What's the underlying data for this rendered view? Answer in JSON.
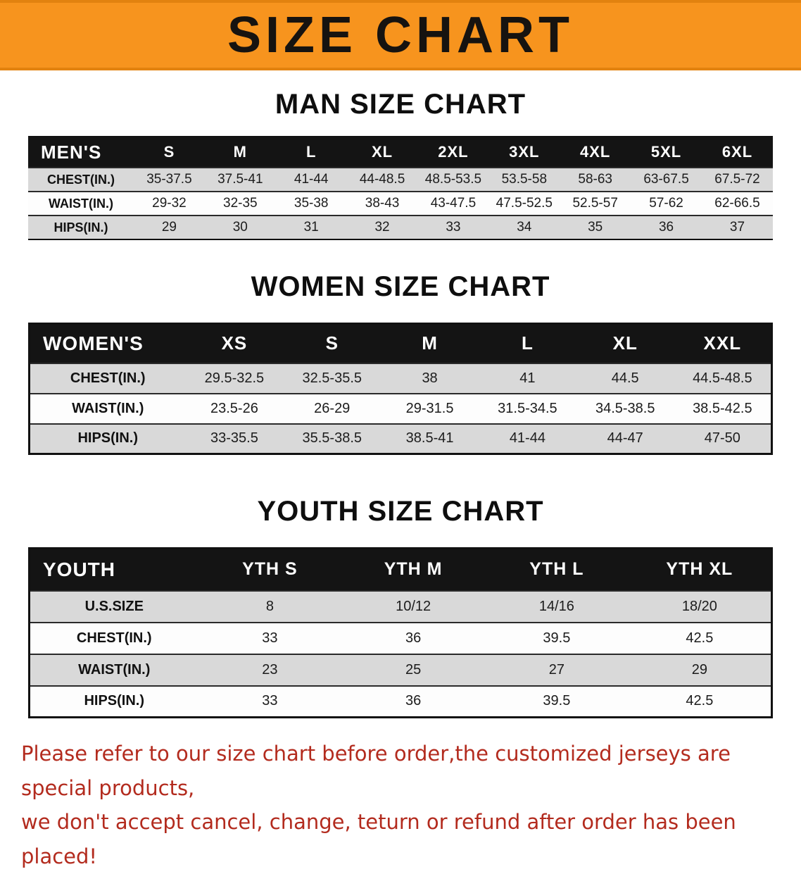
{
  "banner": {
    "title": "SIZE CHART",
    "background_color": "#f7941e"
  },
  "sections": {
    "men": {
      "heading": "MAN SIZE CHART",
      "table": {
        "header": [
          "MEN'S",
          "S",
          "M",
          "L",
          "XL",
          "2XL",
          "3XL",
          "4XL",
          "5XL",
          "6XL"
        ],
        "rows": [
          [
            "CHEST(IN.)",
            "35-37.5",
            "37.5-41",
            "41-44",
            "44-48.5",
            "48.5-53.5",
            "53.5-58",
            "58-63",
            "63-67.5",
            "67.5-72"
          ],
          [
            "WAIST(IN.)",
            "29-32",
            "32-35",
            "35-38",
            "38-43",
            "43-47.5",
            "47.5-52.5",
            "52.5-57",
            "57-62",
            "62-66.5"
          ],
          [
            "HIPS(IN.)",
            "29",
            "30",
            "31",
            "32",
            "33",
            "34",
            "35",
            "36",
            "37"
          ]
        ]
      }
    },
    "women": {
      "heading": "WOMEN SIZE CHART",
      "table": {
        "header": [
          "WOMEN'S",
          "XS",
          "S",
          "M",
          "L",
          "XL",
          "XXL"
        ],
        "rows": [
          [
            "CHEST(IN.)",
            "29.5-32.5",
            "32.5-35.5",
            "38",
            "41",
            "44.5",
            "44.5-48.5"
          ],
          [
            "WAIST(IN.)",
            "23.5-26",
            "26-29",
            "29-31.5",
            "31.5-34.5",
            "34.5-38.5",
            "38.5-42.5"
          ],
          [
            "HIPS(IN.)",
            "33-35.5",
            "35.5-38.5",
            "38.5-41",
            "41-44",
            "44-47",
            "47-50"
          ]
        ]
      }
    },
    "youth": {
      "heading": "YOUTH SIZE CHART",
      "table": {
        "header": [
          "YOUTH",
          "YTH S",
          "YTH M",
          "YTH L",
          "YTH XL"
        ],
        "rows": [
          [
            "U.S.SIZE",
            "8",
            "10/12",
            "14/16",
            "18/20"
          ],
          [
            "CHEST(IN.)",
            "33",
            "36",
            "39.5",
            "42.5"
          ],
          [
            "WAIST(IN.)",
            "23",
            "25",
            "27",
            "29"
          ],
          [
            "HIPS(IN.)",
            "33",
            "36",
            "39.5",
            "42.5"
          ]
        ]
      }
    }
  },
  "footer": {
    "line1": "Please refer to our size chart before order,the customized jerseys are special products,",
    "line2": "we don't accept cancel, change, teturn or refund after order has been placed!",
    "text_color": "#b32b1e"
  }
}
